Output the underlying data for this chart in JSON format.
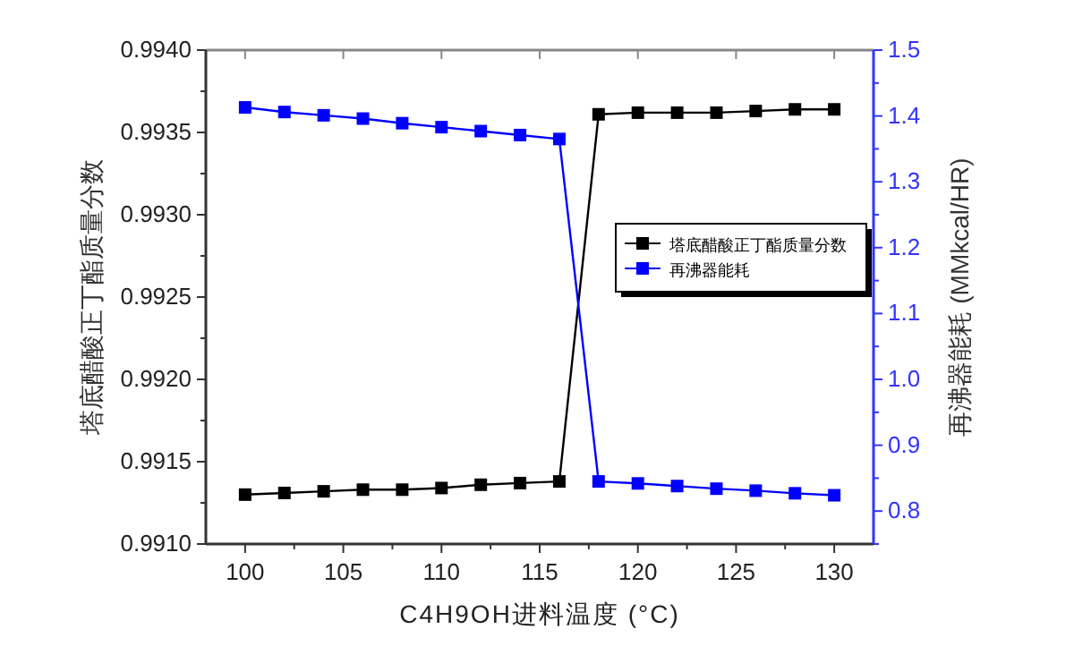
{
  "chart_data": {
    "type": "line",
    "xlabel": "C4H9OH进料温度 (°C)",
    "ylabel": "塔底醋酸正丁酯质量分数",
    "y2label": "再沸器能耗 (MMkcal/HR)",
    "x": [
      100,
      102,
      104,
      106,
      108,
      110,
      112,
      114,
      116,
      118,
      120,
      122,
      124,
      126,
      128,
      130
    ],
    "series": [
      {
        "name": "塔底醋酸正丁酯质量分数",
        "color": "#000000",
        "values": [
          0.9913,
          0.99131,
          0.99132,
          0.99133,
          0.99133,
          0.99134,
          0.99136,
          0.99137,
          0.99138,
          0.99361,
          0.99362,
          0.99362,
          0.99362,
          0.99363,
          0.99364,
          0.99364
        ]
      },
      {
        "name": "再沸器能耗",
        "color": "#0000ff",
        "axis": "y2",
        "values": [
          1.413,
          1.406,
          1.401,
          1.396,
          1.389,
          1.383,
          1.377,
          1.371,
          1.365,
          0.845,
          0.842,
          0.838,
          0.834,
          0.831,
          0.827,
          0.824
        ]
      }
    ],
    "xlim": [
      98,
      132
    ],
    "xticks": [
      100,
      105,
      110,
      115,
      120,
      125,
      130
    ],
    "ylim": [
      0.991,
      0.994
    ],
    "yticks": [
      {
        "value": 0.991,
        "label": "0.9910"
      },
      {
        "value": 0.9915,
        "label": "0.9915"
      },
      {
        "value": 0.992,
        "label": "0.9920"
      },
      {
        "value": 0.9925,
        "label": "0.9925"
      },
      {
        "value": 0.993,
        "label": "0.9930"
      },
      {
        "value": 0.9935,
        "label": "0.9935"
      },
      {
        "value": 0.994,
        "label": "0.9940"
      }
    ],
    "y2lim": [
      0.75,
      1.5
    ],
    "y2ticks": [
      0.8,
      0.9,
      {
        "value": 1.0,
        "label": "1.0"
      },
      1.1,
      1.2,
      1.3,
      1.4,
      1.5
    ],
    "marker": "square",
    "line_style": "solid",
    "legend": "right"
  }
}
